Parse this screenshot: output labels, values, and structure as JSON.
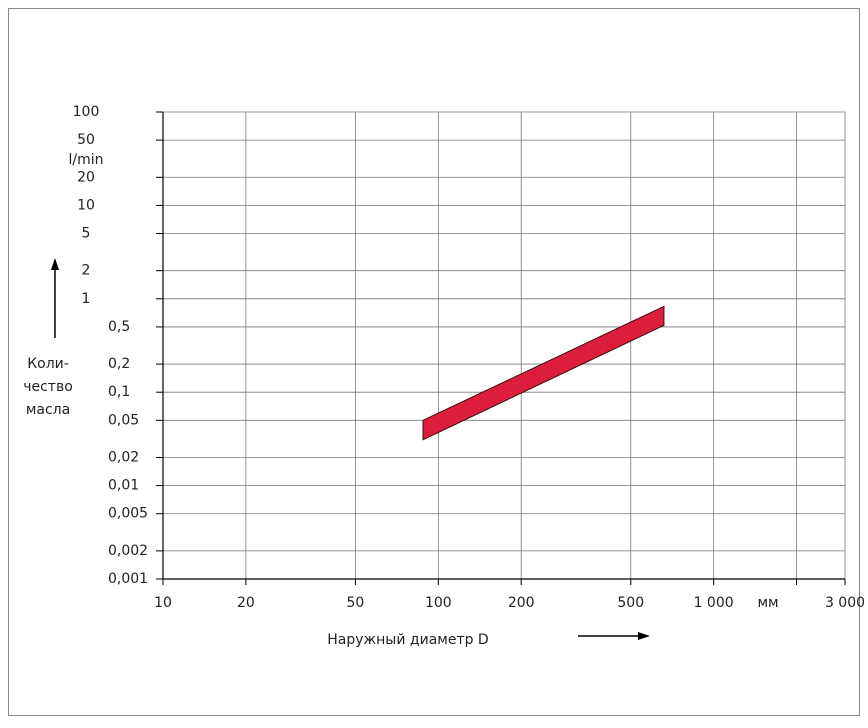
{
  "chart_data": {
    "type": "band",
    "x_label": "Наружный диаметр D",
    "x_unit": "мм",
    "y_label": [
      "Коли-",
      "чество",
      "масла"
    ],
    "y_unit": "l/min",
    "xscale": "log",
    "yscale": "log",
    "grid": true,
    "xlim": [
      10,
      3000
    ],
    "xticks": [
      10,
      20,
      50,
      100,
      200,
      500,
      {
        "value": 1000,
        "label": "1 000"
      },
      {
        "value": 2000,
        "label": null
      },
      {
        "value": 3000,
        "label": "3 000"
      }
    ],
    "ylim": [
      0.001,
      100
    ],
    "yticks": [
      {
        "value": 0.001,
        "label": "0,001"
      },
      {
        "value": 0.002,
        "label": "0,002"
      },
      {
        "value": 0.005,
        "label": "0,005"
      },
      {
        "value": 0.01,
        "label": "0,01"
      },
      {
        "value": 0.02,
        "label": "0,02"
      },
      {
        "value": 0.05,
        "label": "0,05"
      },
      {
        "value": 0.1,
        "label": "0,1"
      },
      {
        "value": 0.2,
        "label": "0,2"
      },
      {
        "value": 0.5,
        "label": "0,5"
      },
      1,
      2,
      5,
      10,
      20,
      50,
      100
    ],
    "band": {
      "x": [
        88,
        660
      ],
      "upper": [
        0.05,
        0.83
      ],
      "lower": [
        0.031,
        0.52
      ],
      "color": "#dc1e3c"
    }
  }
}
